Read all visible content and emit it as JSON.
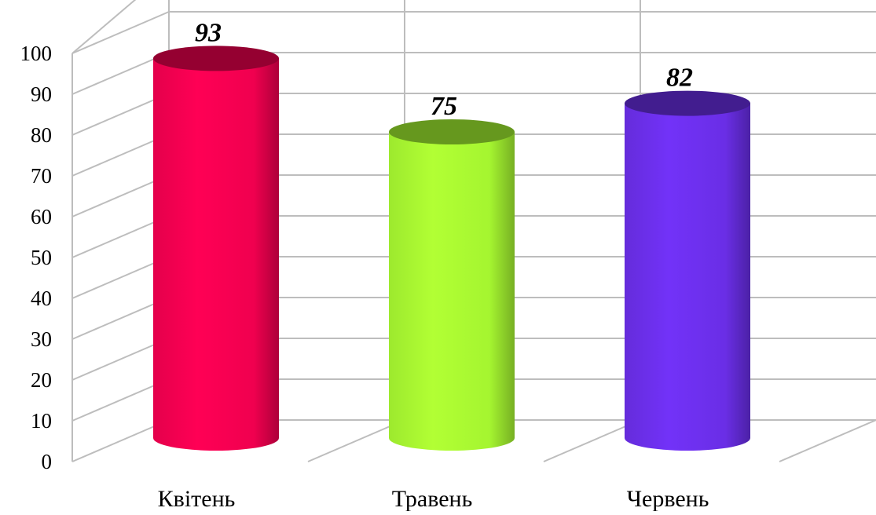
{
  "chart_data": {
    "type": "bar",
    "style": "3d-cylinder",
    "categories": [
      "Квітень",
      "Травень",
      "Червень"
    ],
    "values": [
      93,
      75,
      82
    ],
    "data_labels": [
      "93",
      "75",
      "82"
    ],
    "ylim": [
      0,
      100
    ],
    "yticks": [
      "0",
      "10",
      "20",
      "30",
      "40",
      "50",
      "60",
      "70",
      "80",
      "90",
      "100"
    ],
    "grid": true,
    "legend": "none",
    "title": "",
    "xlabel": "",
    "ylabel": "",
    "colors": [
      "#f0004f",
      "#a5f530",
      "#6a2ee6"
    ],
    "grid_color": "#bdbdbd"
  }
}
